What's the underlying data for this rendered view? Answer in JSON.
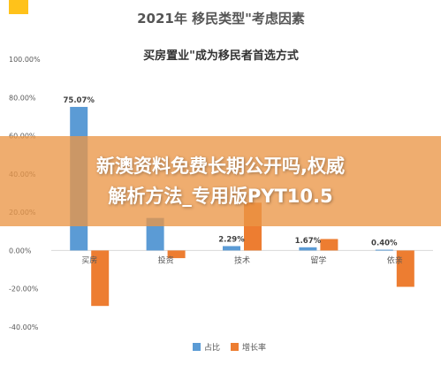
{
  "header": {
    "title": "2021年 移民类型\"考虑因素",
    "subtitle": "买房置业\"成为移民者首选方式"
  },
  "banner": {
    "line1": "新澳资料免费长期公开吗,权威",
    "line2": "解析方法_专用版PYT10.5"
  },
  "colors": {
    "share": "#5b9bd5",
    "growth": "#ed7d31",
    "corner": "#ffc21a"
  },
  "chart_data": {
    "type": "bar",
    "categories": [
      "买房",
      "投资",
      "技术",
      "留学",
      "依亲"
    ],
    "series": [
      {
        "name": "占比",
        "values": [
          75.07,
          17.0,
          2.29,
          1.67,
          0.4
        ]
      },
      {
        "name": "增长率",
        "values": [
          -29.0,
          -4.0,
          25.0,
          6.0,
          -19.0
        ]
      }
    ],
    "data_labels": [
      "75.07%",
      "",
      "2.29%",
      "1.67%",
      "0.40%"
    ],
    "yticks": [
      "100.00%",
      "80.00%",
      "60.00%",
      "40.00%",
      "20.00%",
      "0.00%",
      "-20.00%",
      "-40.00%"
    ],
    "ylim": [
      -40,
      100
    ],
    "legend_position": "bottom"
  }
}
